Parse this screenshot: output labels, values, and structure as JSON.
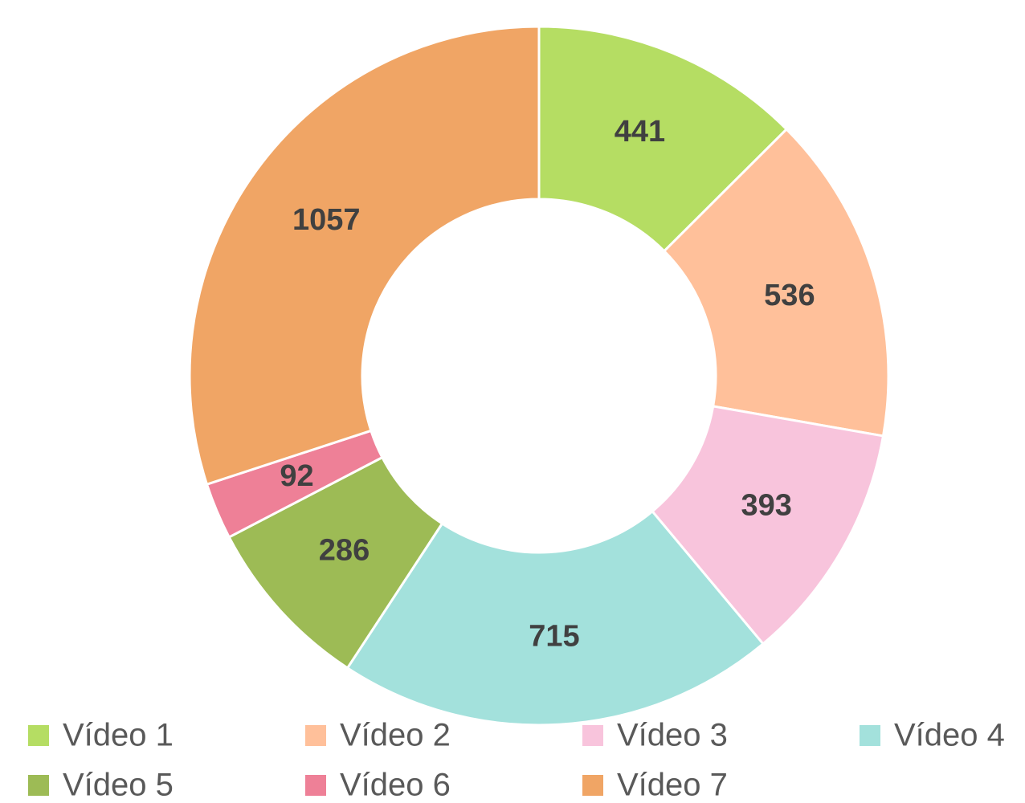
{
  "chart_data": {
    "type": "donut",
    "categories": [
      "Vídeo 1",
      "Vídeo 2",
      "Vídeo 3",
      "Vídeo 4",
      "Vídeo 5",
      "Vídeo 6",
      "Vídeo 7"
    ],
    "values": [
      441,
      536,
      393,
      715,
      286,
      92,
      1057
    ],
    "colors": [
      "#b5dd63",
      "#ffc09a",
      "#f8c4dc",
      "#a3e1dc",
      "#9dbb55",
      "#ee8097",
      "#f0a565"
    ],
    "legend": "bottom"
  }
}
